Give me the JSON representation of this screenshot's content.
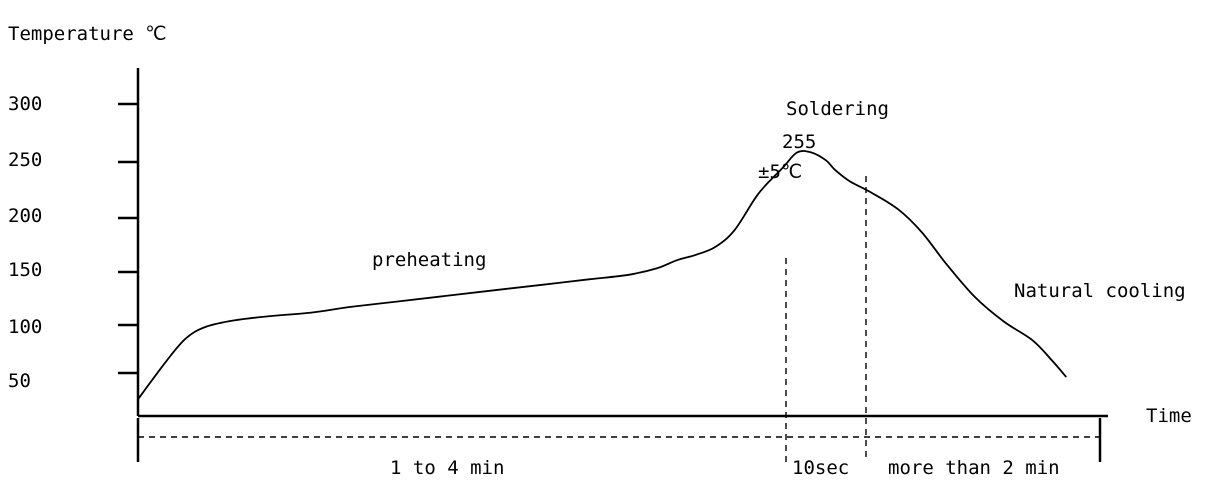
{
  "chart_data": {
    "type": "line",
    "ylabel": "Temperature ℃",
    "xlabel": "Time",
    "y_ticks": [
      "300",
      "250",
      "200",
      "150",
      "100",
      "50"
    ],
    "y_tick_values": [
      300,
      250,
      200,
      150,
      100,
      50
    ],
    "curve": {
      "points": [
        [
          0.0,
          50
        ],
        [
          3.0,
          85
        ],
        [
          5.0,
          105
        ],
        [
          7.0,
          115
        ],
        [
          10.0,
          121
        ],
        [
          14.0,
          125
        ],
        [
          18.0,
          128
        ],
        [
          22.0,
          133
        ],
        [
          27.0,
          138
        ],
        [
          32.0,
          143
        ],
        [
          37.0,
          148
        ],
        [
          42.0,
          153
        ],
        [
          47.0,
          158
        ],
        [
          51.0,
          162
        ],
        [
          54.0,
          168
        ],
        [
          56.0,
          175
        ],
        [
          58.0,
          180
        ],
        [
          60.0,
          187
        ],
        [
          62.0,
          202
        ],
        [
          64.5,
          235
        ],
        [
          67.0,
          258
        ],
        [
          68.5,
          272
        ],
        [
          70.0,
          272
        ],
        [
          71.5,
          265
        ],
        [
          72.5,
          256
        ],
        [
          74.0,
          246
        ],
        [
          76.0,
          237
        ],
        [
          79.0,
          221
        ],
        [
          81.5,
          200
        ],
        [
          84.0,
          172
        ],
        [
          87.0,
          142
        ],
        [
          90.0,
          120
        ],
        [
          93.0,
          103
        ],
        [
          95.0,
          85
        ],
        [
          96.5,
          70
        ]
      ]
    },
    "phases": [
      {
        "name": "preheating",
        "duration": "1 to 4 min"
      },
      {
        "name": "Soldering",
        "duration": "10sec"
      },
      {
        "name": "Natural cooling",
        "duration": "more than 2 min"
      }
    ],
    "annotations": {
      "soldering_title": "Soldering",
      "soldering_temp": "255",
      "soldering_tol": "±5℃",
      "preheating": "preheating",
      "cooling": "Natural cooling"
    },
    "ylim": [
      0,
      330
    ],
    "xlim": [
      0,
      100
    ],
    "grid": false
  }
}
